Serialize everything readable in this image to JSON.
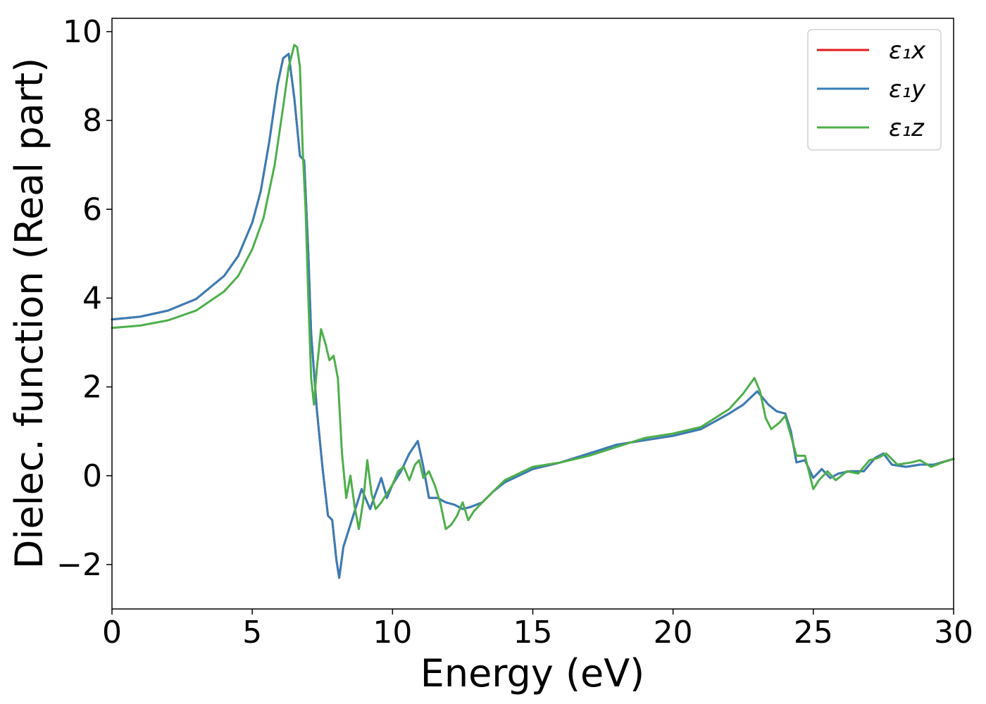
{
  "chart_data": {
    "type": "line",
    "title": "",
    "xlabel": "Energy (eV)",
    "ylabel": "Dielec. function (Real part)",
    "xlim": [
      0,
      30
    ],
    "ylim": [
      -3,
      10.3
    ],
    "xticks": [
      0,
      5,
      10,
      15,
      20,
      25,
      30
    ],
    "xtick_labels": [
      "0",
      "5",
      "10",
      "15",
      "20",
      "25",
      "30"
    ],
    "yticks": [
      -2,
      0,
      2,
      4,
      6,
      8,
      10
    ],
    "ytick_labels": [
      "−2",
      "0",
      "2",
      "4",
      "6",
      "8",
      "10"
    ],
    "grid": false,
    "legend_position": "top-right",
    "series": [
      {
        "name": "ε₁x",
        "color": "#e41a1c",
        "x": [
          0,
          1,
          2,
          3,
          4,
          4.5,
          5,
          5.3,
          5.6,
          5.9,
          6.1,
          6.3,
          6.5,
          6.7,
          6.85,
          7.0,
          7.1,
          7.3,
          7.5,
          7.7,
          7.85,
          8.0,
          8.1,
          8.25,
          8.4,
          8.6,
          8.9,
          9.2,
          9.4,
          9.6,
          9.8,
          10.0,
          10.3,
          10.6,
          10.9,
          11.1,
          11.3,
          11.6,
          11.9,
          12.2,
          12.5,
          12.8,
          13.2,
          13.6,
          14.0,
          14.5,
          15,
          16,
          17,
          18,
          19,
          20,
          21,
          22,
          22.5,
          23.0,
          23.4,
          23.7,
          24.0,
          24.2,
          24.4,
          24.7,
          25.0,
          25.3,
          25.6,
          25.9,
          26.3,
          26.8,
          27.2,
          27.5,
          27.8,
          28.3,
          28.8,
          29.3,
          30.0
        ],
        "y": [
          3.52,
          3.58,
          3.72,
          3.98,
          4.5,
          4.95,
          5.7,
          6.4,
          7.5,
          8.8,
          9.4,
          9.5,
          8.5,
          7.2,
          7.1,
          5.0,
          3.2,
          1.5,
          0.2,
          -0.9,
          -1.0,
          -1.9,
          -2.3,
          -1.6,
          -1.3,
          -0.9,
          -0.3,
          -0.75,
          -0.4,
          -0.05,
          -0.5,
          -0.2,
          0.1,
          0.5,
          0.78,
          0.2,
          -0.5,
          -0.5,
          -0.6,
          -0.65,
          -0.75,
          -0.7,
          -0.6,
          -0.35,
          -0.15,
          0.0,
          0.15,
          0.3,
          0.5,
          0.7,
          0.8,
          0.9,
          1.05,
          1.4,
          1.6,
          1.9,
          1.6,
          1.45,
          1.4,
          1.0,
          0.3,
          0.35,
          -0.05,
          0.15,
          -0.05,
          0.05,
          0.1,
          0.1,
          0.4,
          0.5,
          0.25,
          0.2,
          0.25,
          0.25,
          0.38
        ]
      },
      {
        "name": "ε₁y",
        "color": "#377eb8",
        "x": [
          0,
          1,
          2,
          3,
          4,
          4.5,
          5,
          5.3,
          5.6,
          5.9,
          6.1,
          6.3,
          6.5,
          6.7,
          6.85,
          7.0,
          7.1,
          7.3,
          7.5,
          7.7,
          7.85,
          8.0,
          8.1,
          8.25,
          8.4,
          8.6,
          8.9,
          9.2,
          9.4,
          9.6,
          9.8,
          10.0,
          10.3,
          10.6,
          10.9,
          11.1,
          11.3,
          11.6,
          11.9,
          12.2,
          12.5,
          12.8,
          13.2,
          13.6,
          14.0,
          14.5,
          15,
          16,
          17,
          18,
          19,
          20,
          21,
          22,
          22.5,
          23.0,
          23.4,
          23.7,
          24.0,
          24.2,
          24.4,
          24.7,
          25.0,
          25.3,
          25.6,
          25.9,
          26.3,
          26.8,
          27.2,
          27.5,
          27.8,
          28.3,
          28.8,
          29.3,
          30.0
        ],
        "y": [
          3.52,
          3.58,
          3.72,
          3.98,
          4.5,
          4.95,
          5.7,
          6.4,
          7.5,
          8.8,
          9.4,
          9.5,
          8.5,
          7.2,
          7.1,
          5.0,
          3.2,
          1.5,
          0.2,
          -0.9,
          -1.0,
          -1.9,
          -2.3,
          -1.6,
          -1.3,
          -0.9,
          -0.3,
          -0.75,
          -0.4,
          -0.05,
          -0.5,
          -0.2,
          0.1,
          0.5,
          0.78,
          0.2,
          -0.5,
          -0.5,
          -0.6,
          -0.65,
          -0.75,
          -0.7,
          -0.6,
          -0.35,
          -0.15,
          0.0,
          0.15,
          0.3,
          0.5,
          0.7,
          0.8,
          0.9,
          1.05,
          1.4,
          1.6,
          1.9,
          1.6,
          1.45,
          1.4,
          1.0,
          0.3,
          0.35,
          -0.05,
          0.15,
          -0.05,
          0.05,
          0.1,
          0.1,
          0.4,
          0.5,
          0.25,
          0.2,
          0.25,
          0.25,
          0.38
        ]
      },
      {
        "name": "ε₁z",
        "color": "#4daf4a",
        "x": [
          0,
          1,
          2,
          3,
          4,
          4.5,
          5,
          5.4,
          5.8,
          6.1,
          6.3,
          6.5,
          6.6,
          6.7,
          6.8,
          6.9,
          7.0,
          7.1,
          7.2,
          7.3,
          7.45,
          7.6,
          7.75,
          7.9,
          8.05,
          8.2,
          8.35,
          8.5,
          8.65,
          8.8,
          8.95,
          9.1,
          9.25,
          9.4,
          9.6,
          9.8,
          10.0,
          10.2,
          10.4,
          10.6,
          10.8,
          10.95,
          11.1,
          11.3,
          11.5,
          11.7,
          11.9,
          12.1,
          12.3,
          12.5,
          12.7,
          12.9,
          13.2,
          13.6,
          14.0,
          14.5,
          15,
          16,
          17,
          18,
          19,
          20,
          21,
          22,
          22.5,
          22.9,
          23.1,
          23.3,
          23.5,
          23.8,
          24.0,
          24.2,
          24.4,
          24.7,
          25.0,
          25.2,
          25.5,
          25.8,
          26.2,
          26.6,
          27.0,
          27.3,
          27.6,
          28.0,
          28.5,
          28.8,
          29.2,
          29.6,
          30.0
        ],
        "y": [
          3.33,
          3.38,
          3.5,
          3.72,
          4.15,
          4.5,
          5.1,
          5.8,
          7.0,
          8.3,
          9.2,
          9.7,
          9.65,
          9.2,
          7.3,
          6.0,
          4.0,
          2.2,
          1.6,
          2.4,
          3.3,
          3.0,
          2.6,
          2.7,
          2.2,
          0.5,
          -0.5,
          0.0,
          -0.7,
          -1.2,
          -0.6,
          0.35,
          -0.4,
          -0.75,
          -0.6,
          -0.4,
          -0.2,
          0.1,
          0.2,
          -0.1,
          0.25,
          0.35,
          -0.05,
          0.1,
          -0.2,
          -0.6,
          -1.2,
          -1.1,
          -0.9,
          -0.6,
          -1.0,
          -0.8,
          -0.6,
          -0.35,
          -0.1,
          0.05,
          0.2,
          0.3,
          0.45,
          0.65,
          0.85,
          0.95,
          1.1,
          1.5,
          1.85,
          2.2,
          1.9,
          1.3,
          1.05,
          1.2,
          1.35,
          0.9,
          0.45,
          0.45,
          -0.3,
          -0.1,
          0.1,
          -0.1,
          0.1,
          0.05,
          0.35,
          0.4,
          0.5,
          0.25,
          0.3,
          0.35,
          0.2,
          0.3,
          0.38
        ]
      }
    ]
  }
}
